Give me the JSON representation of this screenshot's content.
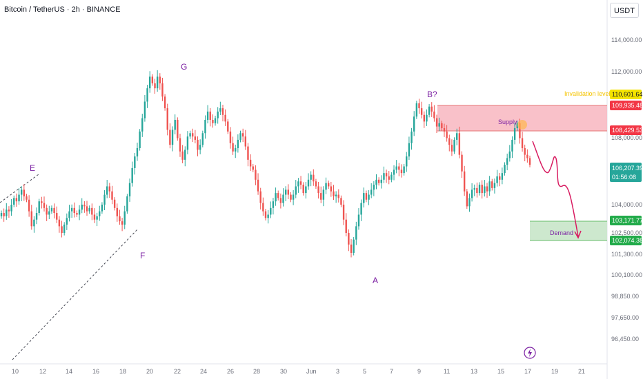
{
  "header": {
    "symbol_title": "Bitcoin / TetherUS · 2h · BINANCE",
    "currency": "USDT"
  },
  "chart_data": {
    "type": "candlestick",
    "price_axis_ticks": [
      "114,000.00",
      "112,000.00",
      "108,000.00",
      "104,000.00",
      "102,500.00",
      "101,300.00",
      "100,100.00",
      "98,850.00",
      "97,650.00",
      "96,450.00"
    ],
    "time_axis_ticks": [
      "10",
      "12",
      "14",
      "16",
      "18",
      "20",
      "22",
      "24",
      "26",
      "28",
      "30",
      "Jun",
      "3",
      "5",
      "7",
      "9",
      "11",
      "13",
      "15",
      "17",
      "19",
      "21"
    ],
    "price_tags": [
      {
        "label": "110,601.64",
        "role": "invalidation",
        "bg": "#f5e400",
        "fg": "#131722"
      },
      {
        "label": "109,935.48",
        "role": "supply-top",
        "bg": "#f23645",
        "fg": "#ffffff"
      },
      {
        "label": "108,429.53",
        "role": "supply-bottom",
        "bg": "#f23645",
        "fg": "#ffffff"
      },
      {
        "label": "106,207.39",
        "sublabel": "01:56:08",
        "role": "last-price",
        "bg": "#26a69a",
        "fg": "#ffffff"
      },
      {
        "label": "103,171.77",
        "role": "demand-top",
        "bg": "#22ab4a",
        "fg": "#ffffff"
      },
      {
        "label": "102,074.38",
        "role": "demand-bottom",
        "bg": "#22ab4a",
        "fg": "#ffffff"
      }
    ],
    "zones": [
      {
        "name": "Supply",
        "top": 109935.48,
        "bottom": 108429.53,
        "color": "#f8b6c0"
      },
      {
        "name": "Demand",
        "top": 103171.77,
        "bottom": 102074.38,
        "color": "#c8e6c9"
      }
    ],
    "invalidation_label": "Invalidation level",
    "wave_labels": [
      "E",
      "F",
      "G",
      "A",
      "B?"
    ],
    "colors": {
      "up": "#26a69a",
      "down": "#ef5350",
      "wave": "#7b1fa2",
      "projection": "#d81b60"
    },
    "candle_closes": [
      103500,
      103300,
      103700,
      103600,
      104000,
      104400,
      104200,
      104600,
      104900,
      104500,
      104300,
      103600,
      102700,
      103100,
      103500,
      104200,
      104100,
      103800,
      103400,
      103600,
      103800,
      103500,
      103100,
      102700,
      102300,
      102800,
      103200,
      103600,
      103800,
      103500,
      103400,
      103700,
      104000,
      103900,
      103600,
      103800,
      103400,
      103100,
      103300,
      103600,
      104000,
      104600,
      105100,
      104800,
      104300,
      103800,
      103300,
      103000,
      102800,
      103600,
      104500,
      105300,
      106200,
      106900,
      107400,
      108400,
      109200,
      110200,
      111000,
      111700,
      111300,
      111000,
      111700,
      111300,
      110500,
      109800,
      108500,
      107600,
      108500,
      109100,
      108000,
      107200,
      106700,
      107300,
      108100,
      108300,
      108100,
      107900,
      107300,
      107600,
      108300,
      109100,
      109600,
      109100,
      108900,
      109200,
      109600,
      109800,
      109400,
      109000,
      108400,
      107700,
      107200,
      107400,
      107900,
      108300,
      108100,
      107500,
      106700,
      106300,
      106100,
      105500,
      104800,
      104100,
      103600,
      103200,
      103400,
      103800,
      104200,
      104700,
      104400,
      104100,
      104600,
      104900,
      104600,
      104300,
      104600,
      105100,
      105400,
      105200,
      104700,
      105100,
      105500,
      105800,
      105400,
      105100,
      104700,
      104300,
      104900,
      105300,
      105100,
      104800,
      104500,
      104600,
      104400,
      104000,
      103100,
      102300,
      101600,
      101100,
      101900,
      102700,
      103400,
      104100,
      104700,
      104300,
      104600,
      104900,
      105200,
      105500,
      105300,
      105500,
      105900,
      105700,
      105500,
      105800,
      106100,
      106300,
      106100,
      105900,
      106300,
      106900,
      107700,
      108400,
      109300,
      110100,
      109800,
      109400,
      109000,
      109400,
      109900,
      109600,
      109200,
      108700,
      108900,
      108600,
      108400,
      108000,
      107600,
      107200,
      107900,
      108300,
      107000,
      106000,
      104800,
      103900,
      104400,
      104900,
      105000,
      104700,
      105200,
      104700,
      105100,
      104800,
      105400,
      105000,
      105300,
      105700,
      105500,
      105900,
      106400,
      106800,
      107200,
      107900,
      108600,
      108900,
      108000,
      107400,
      107000,
      106800,
      106400
    ]
  }
}
